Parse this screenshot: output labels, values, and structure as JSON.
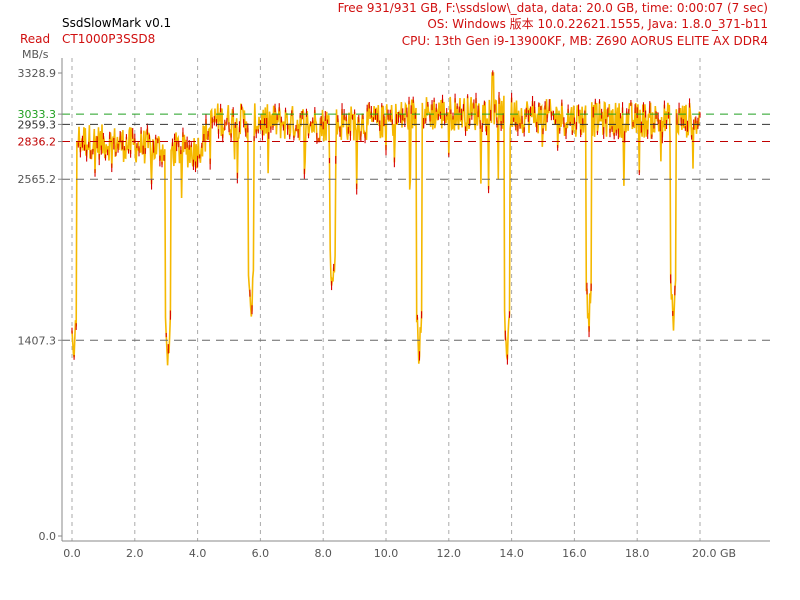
{
  "header": {
    "app_title": "SsdSlowMark v0.1",
    "mode_label": "Read",
    "device_model": "CT1000P3SSD8",
    "units_label": "MB/s",
    "info_line1": "Free 931/931 GB, F:\\ssdslow\\_data, data: 20.0 GB, time: 0:00:07 (7 sec)",
    "info_line2": "OS: Windows 版本 10.0.22621.1555, Java: 1.8.0_371-b11",
    "info_line3": "CPU: 13th Gen i9-13900KF, MB: Z690 AORUS ELITE AX DDR4"
  },
  "colors": {
    "series_fill": "#f5b800",
    "series_marks": "#d80000",
    "grid": "#888888",
    "ref_green": "#20a020",
    "ref_red": "#c00000",
    "ref_dark": "#333333"
  },
  "chart_data": {
    "type": "line",
    "title": "",
    "xlabel": "GB",
    "ylabel": "MB/s",
    "xlim": [
      0,
      22
    ],
    "ylim": [
      0,
      3328.9
    ],
    "x_ticks": [
      0.0,
      2.0,
      4.0,
      6.0,
      8.0,
      10.0,
      12.0,
      14.0,
      16.0,
      18.0,
      20.0
    ],
    "x_tick_labels": [
      "0.0",
      "2.0",
      "4.0",
      "6.0",
      "8.0",
      "10.0",
      "12.0",
      "14.0",
      "16.0",
      "18.0",
      "20.0 GB"
    ],
    "y_tick_labels": [
      {
        "value": 3328.9,
        "label": "3328.9",
        "color": "#555555"
      },
      {
        "value": 3033.3,
        "label": "3033.3",
        "color": "#20a020"
      },
      {
        "value": 2959.3,
        "label": "2959.3",
        "color": "#333333"
      },
      {
        "value": 2836.2,
        "label": "2836.2",
        "color": "#c00000"
      },
      {
        "value": 2565.2,
        "label": "2565.2",
        "color": "#555555"
      },
      {
        "value": 1407.3,
        "label": "1407.3",
        "color": "#555555"
      },
      {
        "value": 0.0,
        "label": "0.0",
        "color": "#555555"
      }
    ],
    "reference_lines": [
      {
        "value": 3033.3,
        "color": "#20a020"
      },
      {
        "value": 2959.3,
        "color": "#333333"
      },
      {
        "value": 2836.2,
        "color": "#c00000"
      },
      {
        "value": 2565.2,
        "color": "#666666"
      },
      {
        "value": 1407.3,
        "color": "#666666"
      }
    ],
    "series": [
      {
        "x_range": [
          0,
          20
        ],
        "trend": [
          [
            0.0,
            2850
          ],
          [
            1.0,
            2830
          ],
          [
            2.0,
            2810
          ],
          [
            3.0,
            2780
          ],
          [
            4.0,
            2770
          ],
          [
            4.5,
            2990
          ],
          [
            6.0,
            2980
          ],
          [
            8.0,
            2960
          ],
          [
            10.0,
            2980
          ],
          [
            10.8,
            3030
          ],
          [
            11.2,
            3040
          ],
          [
            13.5,
            3040
          ],
          [
            16.0,
            3000
          ],
          [
            18.0,
            2990
          ],
          [
            20.0,
            2990
          ]
        ],
        "dips": [
          [
            0.05,
            1150
          ],
          [
            3.05,
            1120
          ],
          [
            5.7,
            1450
          ],
          [
            8.3,
            1650
          ],
          [
            11.05,
            1200
          ],
          [
            13.85,
            1180
          ],
          [
            16.45,
            1400
          ],
          [
            19.15,
            1400
          ]
        ],
        "peak": [
          13.4,
          3328.9
        ]
      }
    ]
  }
}
